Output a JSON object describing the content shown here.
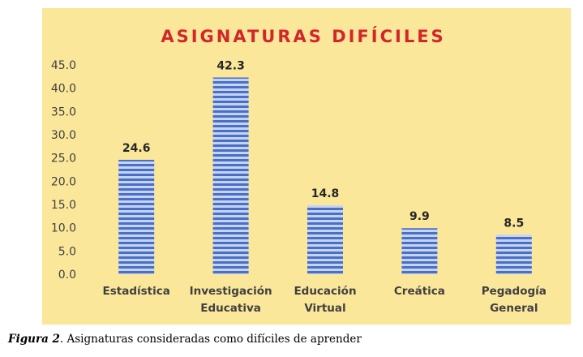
{
  "caption": {
    "label": "Figura 2",
    "text": ". Asignaturas consideradas como difíciles de aprender"
  },
  "colors": {
    "background": "#fbe79a",
    "title": "#d2262b",
    "bar_dark": "#4a6fc6",
    "bar_light": "#c6d4f3"
  },
  "chart_data": {
    "type": "bar",
    "title": "ASIGNATURAS DIFÍCILES",
    "xlabel": "",
    "ylabel": "",
    "ylim": [
      0,
      45
    ],
    "yticks": [
      "0.0",
      "5.0",
      "10.0",
      "15.0",
      "20.0",
      "25.0",
      "30.0",
      "35.0",
      "40.0",
      "45.0"
    ],
    "categories": [
      [
        "Estadística"
      ],
      [
        "Investigación",
        "Educativa"
      ],
      [
        "Educación",
        "Virtual"
      ],
      [
        "Creática"
      ],
      [
        "Pegadogía",
        "General"
      ]
    ],
    "values": [
      24.6,
      42.3,
      14.8,
      9.9,
      8.5
    ],
    "value_labels": [
      "24.6",
      "42.3",
      "14.8",
      "9.9",
      "8.5"
    ],
    "grid": false,
    "legend": "none"
  }
}
